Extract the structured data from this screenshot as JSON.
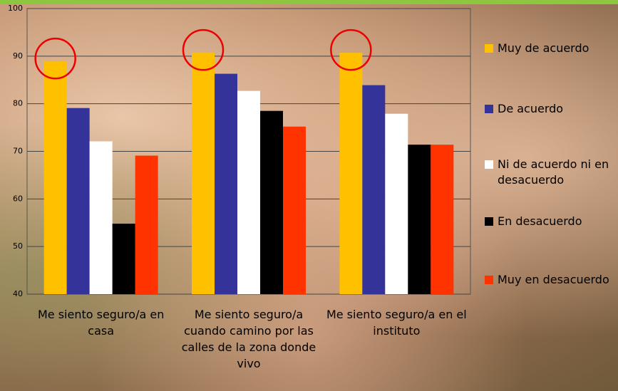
{
  "chart_data": {
    "type": "bar",
    "categories": [
      "Me siento seguro/a en casa",
      "Me siento seguro/a cuando camino por las calles de la zona donde vivo",
      "Me siento seguro/a en el instituto"
    ],
    "series": [
      {
        "name": "Muy de acuerdo",
        "color": "#ffc000",
        "values": [
          88.9,
          90.7,
          90.7
        ]
      },
      {
        "name": "De acuerdo",
        "color": "#333399",
        "values": [
          79.1,
          86.3,
          83.9
        ]
      },
      {
        "name": "Ni de acuerdo ni en desacuerdo",
        "color": "#ffffff",
        "values": [
          72.1,
          82.7,
          77.9
        ]
      },
      {
        "name": "En desacuerdo",
        "color": "#000000",
        "values": [
          54.8,
          78.5,
          71.4
        ]
      },
      {
        "name": "Muy en desacuerdo",
        "color": "#ff3300",
        "values": [
          69.1,
          75.2,
          71.4
        ]
      }
    ],
    "ylim": [
      40,
      100
    ],
    "yticks": [
      40,
      50,
      60,
      70,
      80,
      90,
      100
    ],
    "grid": true,
    "legend": "right"
  }
}
